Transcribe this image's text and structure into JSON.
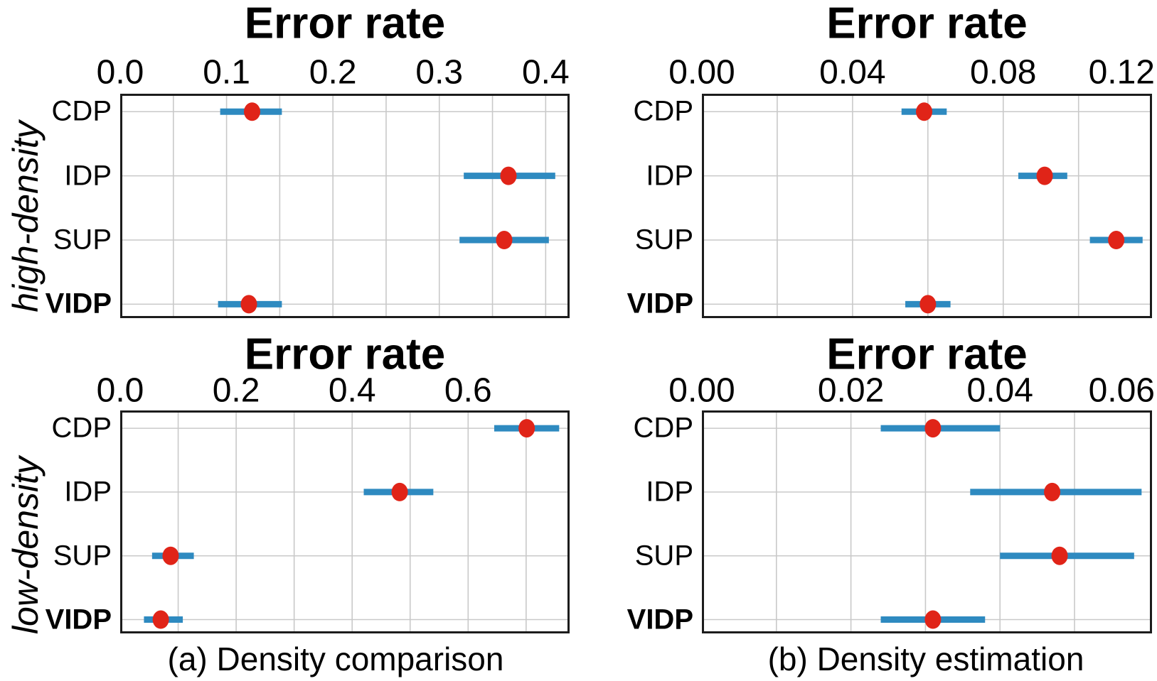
{
  "figure": {
    "row_labels": [
      "high-density",
      "low-density"
    ],
    "captions": [
      "(a) Density comparison",
      "(b) Density estimation"
    ]
  },
  "colors": {
    "error_bar": "#2e8ac0",
    "mean_dot": "#e02418",
    "gridline": "#c9c9c9",
    "spine": "#1c1c1c",
    "text": "#000000"
  },
  "chart_data": [
    {
      "type": "scatter",
      "subtype": "horizontal-errorbar-dotplot",
      "title": "Error rate",
      "row_label": "high-density",
      "caption_group": "(a) Density comparison",
      "categories": [
        "CDP",
        "IDP",
        "SUP",
        "VIDP"
      ],
      "bold_category": "VIDP",
      "points": [
        {
          "category": "CDP",
          "value": 0.124,
          "lo": 0.094,
          "hi": 0.152
        },
        {
          "category": "IDP",
          "value": 0.365,
          "lo": 0.323,
          "hi": 0.409
        },
        {
          "category": "SUP",
          "value": 0.361,
          "lo": 0.319,
          "hi": 0.403
        },
        {
          "category": "VIDP",
          "value": 0.121,
          "lo": 0.092,
          "hi": 0.152
        }
      ],
      "xlim": [
        0,
        0.4225
      ],
      "xticks": [
        0.0,
        0.1,
        0.2,
        0.3,
        0.4
      ],
      "xtick_labels": [
        "0.0",
        "0.1",
        "0.2",
        "0.3",
        "0.4"
      ],
      "grid_step": 0.05,
      "grid": "on",
      "legend": "none"
    },
    {
      "type": "scatter",
      "subtype": "horizontal-errorbar-dotplot",
      "title": "Error rate",
      "row_label": "high-density",
      "caption_group": "(b) Density estimation",
      "categories": [
        "CDP",
        "IDP",
        "SUP",
        "VIDP"
      ],
      "bold_category": "VIDP",
      "points": [
        {
          "category": "CDP",
          "value": 0.059,
          "lo": 0.053,
          "hi": 0.065
        },
        {
          "category": "IDP",
          "value": 0.091,
          "lo": 0.084,
          "hi": 0.097
        },
        {
          "category": "SUP",
          "value": 0.11,
          "lo": 0.103,
          "hi": 0.117
        },
        {
          "category": "VIDP",
          "value": 0.06,
          "lo": 0.054,
          "hi": 0.066
        }
      ],
      "xlim": [
        0,
        0.1195
      ],
      "xticks": [
        0.0,
        0.04,
        0.08,
        0.12
      ],
      "xtick_labels": [
        "0.00",
        "0.04",
        "0.08",
        "0.12"
      ],
      "grid_step": 0.02,
      "grid": "on",
      "legend": "none"
    },
    {
      "type": "scatter",
      "subtype": "horizontal-errorbar-dotplot",
      "title": "Error rate",
      "row_label": "low-density",
      "caption_group": "(a) Density comparison",
      "categories": [
        "CDP",
        "IDP",
        "SUP",
        "VIDP"
      ],
      "bold_category": "VIDP",
      "points": [
        {
          "category": "CDP",
          "value": 0.701,
          "lo": 0.645,
          "hi": 0.757
        },
        {
          "category": "IDP",
          "value": 0.482,
          "lo": 0.42,
          "hi": 0.54
        },
        {
          "category": "SUP",
          "value": 0.087,
          "lo": 0.055,
          "hi": 0.127
        },
        {
          "category": "VIDP",
          "value": 0.07,
          "lo": 0.041,
          "hi": 0.108
        }
      ],
      "xlim": [
        0,
        0.775
      ],
      "xticks": [
        0.0,
        0.2,
        0.4,
        0.6
      ],
      "xtick_labels": [
        "0.0",
        "0.2",
        "0.4",
        "0.6"
      ],
      "grid_step": 0.1,
      "grid": "on",
      "legend": "none"
    },
    {
      "type": "scatter",
      "subtype": "horizontal-errorbar-dotplot",
      "title": "Error rate",
      "row_label": "low-density",
      "caption_group": "(b) Density estimation",
      "categories": [
        "CDP",
        "IDP",
        "SUP",
        "VIDP"
      ],
      "bold_category": "VIDP",
      "points": [
        {
          "category": "CDP",
          "value": 0.031,
          "lo": 0.024,
          "hi": 0.04
        },
        {
          "category": "IDP",
          "value": 0.047,
          "lo": 0.036,
          "hi": 0.059
        },
        {
          "category": "SUP",
          "value": 0.048,
          "lo": 0.04,
          "hi": 0.058
        },
        {
          "category": "VIDP",
          "value": 0.031,
          "lo": 0.024,
          "hi": 0.038
        }
      ],
      "xlim": [
        0,
        0.0604
      ],
      "xticks": [
        0.0,
        0.02,
        0.04,
        0.06
      ],
      "xtick_labels": [
        "0.00",
        "0.02",
        "0.04",
        "0.06"
      ],
      "grid_step": 0.01,
      "grid": "on",
      "legend": "none"
    }
  ]
}
